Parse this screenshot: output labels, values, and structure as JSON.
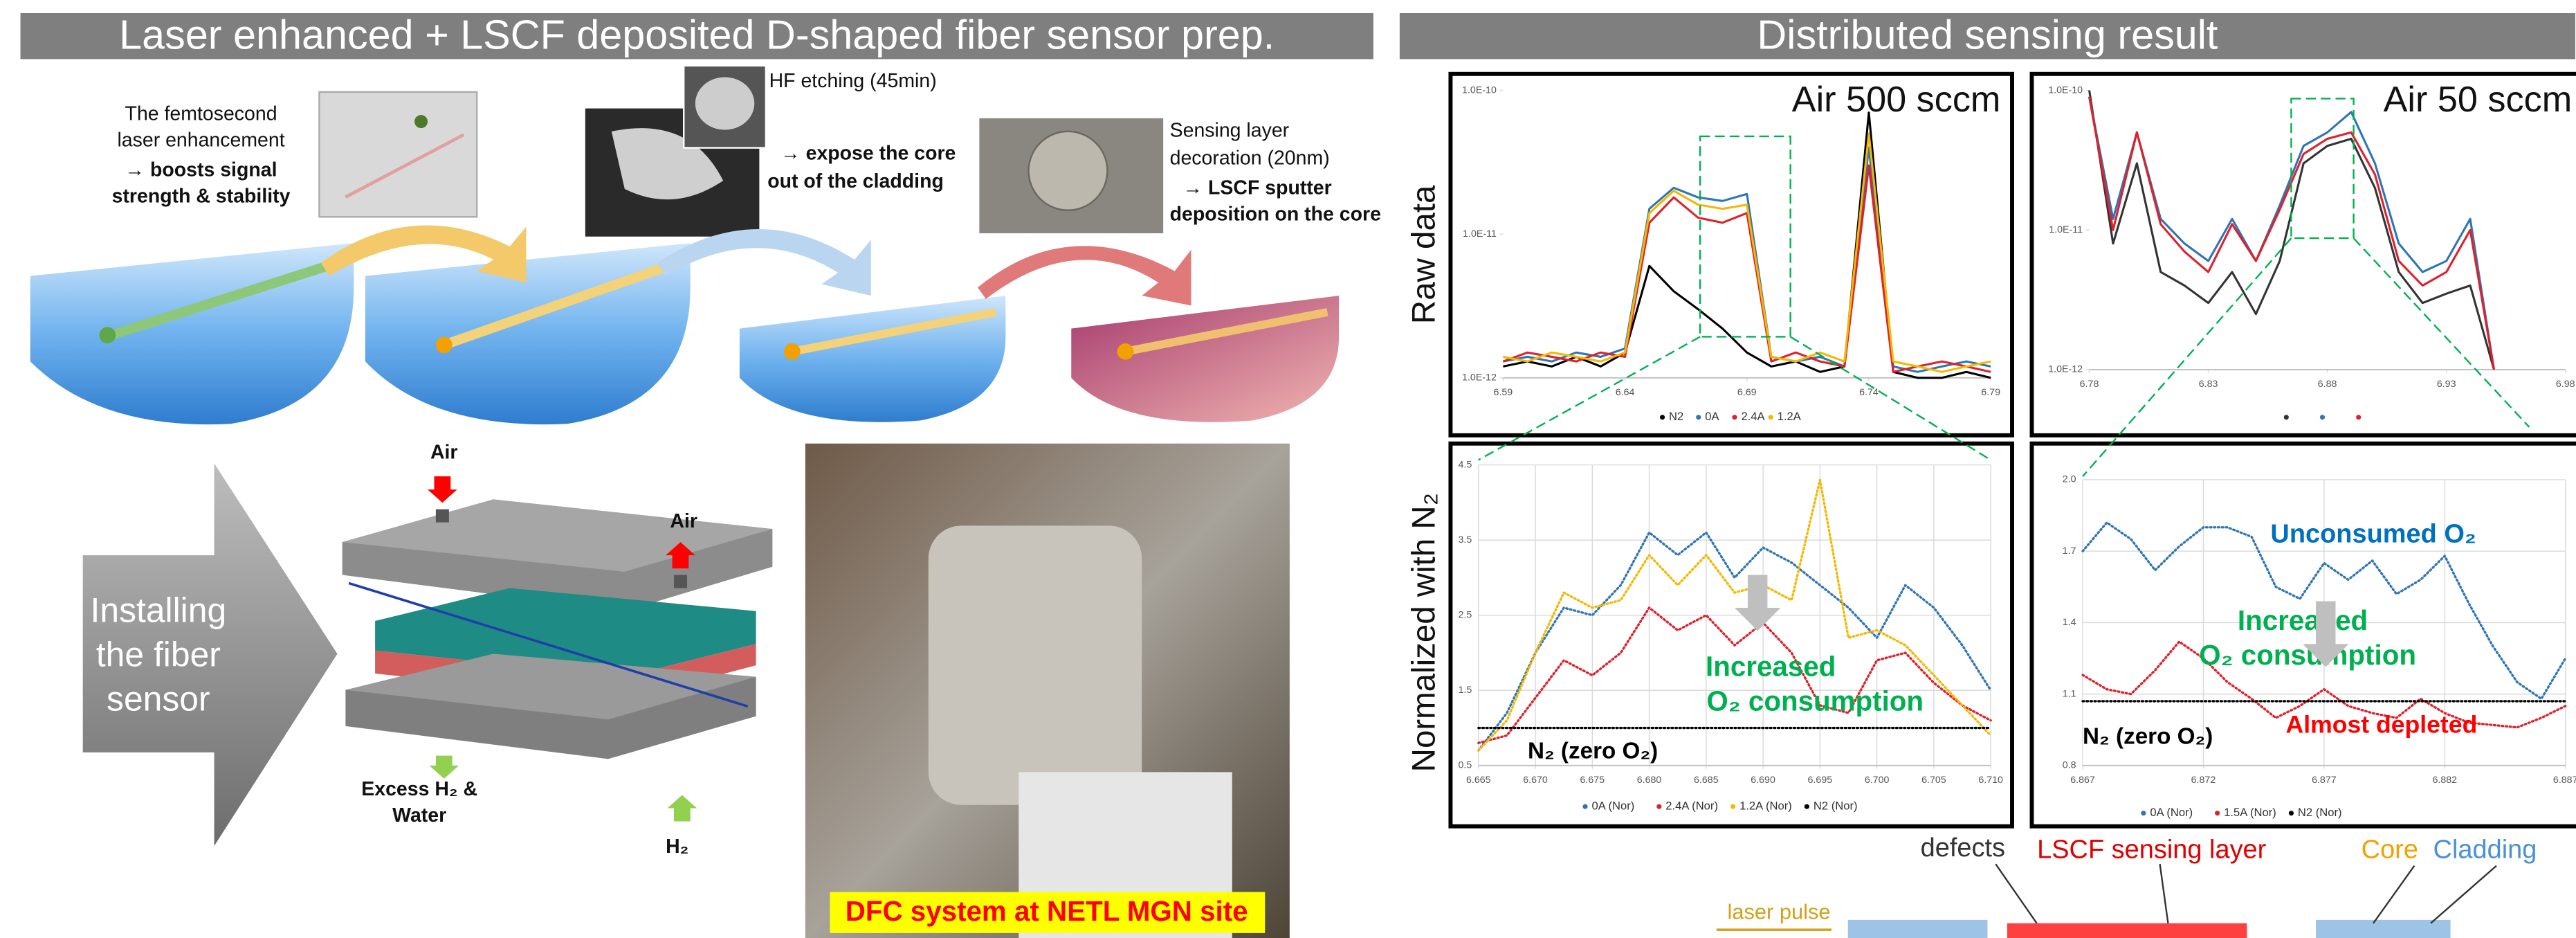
{
  "left_panel": {
    "title": "Laser enhanced + LSCF deposited D-shaped fiber sensor prep.",
    "steps": [
      {
        "description": [
          "The femtosecond",
          "laser enhancement"
        ],
        "effect": [
          "→ boosts signal",
          "strength & stability"
        ]
      },
      {
        "description": [
          "HF etching (45min)"
        ],
        "effect": [
          "→ expose the core",
          "out of the cladding"
        ]
      },
      {
        "description": [
          "Sensing layer",
          "decoration (20nm)"
        ],
        "effect": [
          "→ LSCF sputter",
          "deposition on the core"
        ]
      }
    ],
    "assembly": {
      "arrow_text": [
        "Installing",
        "the fiber",
        "sensor"
      ],
      "labels": [
        "Air",
        "Air",
        "Excess H₂ &",
        "Water",
        "H₂"
      ]
    },
    "photo_caption": "DFC system at NETL MGN site"
  },
  "right_panel": {
    "title": "Distributed sensing result",
    "row_labels": [
      "Raw data",
      "Normalized with N₂"
    ],
    "charts": [
      {
        "type": "line",
        "title": "Air 500 sccm",
        "log_y": true,
        "grid": false,
        "xlim": [
          6.59,
          6.79
        ],
        "xticks": [
          6.59,
          6.64,
          6.69,
          6.74,
          6.79
        ],
        "ylim": [
          1e-12,
          1e-10
        ],
        "yticks": [
          {
            "value": 1e-12,
            "label": "1.0E-12"
          },
          {
            "value": 1e-11,
            "label": "1.0E-11"
          },
          {
            "value": 1e-10,
            "label": "1.0E-10"
          }
        ],
        "x": [
          6.59,
          6.6,
          6.61,
          6.62,
          6.63,
          6.64,
          6.65,
          6.66,
          6.67,
          6.68,
          6.69,
          6.7,
          6.71,
          6.72,
          6.73,
          6.74,
          6.75,
          6.76,
          6.77,
          6.78,
          6.79
        ],
        "series": [
          {
            "name": "N2",
            "color": "#000000",
            "values": [
              1.2e-12,
              1.3e-12,
              1.2e-12,
              1.4e-12,
              1.2e-12,
              1.5e-12,
              6e-12,
              4e-12,
              3e-12,
              2.2e-12,
              1.5e-12,
              1.2e-12,
              1.3e-12,
              1.1e-12,
              1.2e-12,
              7e-11,
              1.1e-12,
              1e-12,
              1e-12,
              1.1e-12,
              1e-12
            ]
          },
          {
            "name": "0A",
            "color": "#2e75b6",
            "values": [
              1.3e-12,
              1.4e-12,
              1.3e-12,
              1.5e-12,
              1.4e-12,
              1.6e-12,
              1.5e-11,
              2.1e-11,
              1.8e-11,
              1.7e-11,
              1.9e-11,
              1.4e-12,
              1.3e-12,
              1.4e-12,
              1.2e-12,
              4e-11,
              1.2e-12,
              1.1e-12,
              1.2e-12,
              1.3e-12,
              1.2e-12
            ]
          },
          {
            "name": "2.4A",
            "color": "#e0202a",
            "values": [
              1.3e-12,
              1.5e-12,
              1.4e-12,
              1.3e-12,
              1.5e-12,
              1.4e-12,
              1.2e-11,
              1.8e-11,
              1.3e-11,
              1.2e-11,
              1.4e-11,
              1.3e-12,
              1.5e-12,
              1.3e-12,
              1.2e-12,
              3e-11,
              1.1e-12,
              1.2e-12,
              1.3e-12,
              1.2e-12,
              1.1e-12
            ]
          },
          {
            "name": "1.2A",
            "color": "#f5b800",
            "values": [
              1.4e-12,
              1.3e-12,
              1.5e-12,
              1.4e-12,
              1.3e-12,
              1.5e-12,
              1.4e-11,
              2e-11,
              1.6e-11,
              1.5e-11,
              1.6e-11,
              1.4e-12,
              1.3e-12,
              1.5e-12,
              1.3e-12,
              5e-11,
              1.3e-12,
              1.2e-12,
              1.1e-12,
              1.2e-12,
              1.3e-12
            ]
          }
        ],
        "annotations": []
      },
      {
        "type": "line",
        "title": "Air 50 sccm",
        "log_y": true,
        "grid": false,
        "xlim": [
          6.78,
          6.98
        ],
        "xticks": [
          6.78,
          6.83,
          6.88,
          6.93,
          6.98
        ],
        "ylim": [
          1e-12,
          1e-10
        ],
        "yticks": [
          {
            "value": 1e-12,
            "label": "1.0E-12"
          },
          {
            "value": 1e-11,
            "label": "1.0E-11"
          },
          {
            "value": 1e-10,
            "label": "1.0E-10"
          }
        ],
        "x": [
          6.78,
          6.79,
          6.8,
          6.81,
          6.82,
          6.83,
          6.84,
          6.85,
          6.86,
          6.87,
          6.88,
          6.89,
          6.9,
          6.91,
          6.92,
          6.93,
          6.94,
          6.95
        ],
        "series": [
          {
            "color": "#333333",
            "values": [
              1e-10,
              8e-12,
              3e-11,
              5e-12,
              4e-12,
              3e-12,
              5e-12,
              2.5e-12,
              6e-12,
              3e-11,
              4e-11,
              4.5e-11,
              2e-11,
              5e-12,
              3e-12,
              3.5e-12,
              4e-12,
              1e-12
            ]
          },
          {
            "color": "#2e75b6",
            "values": [
              9e-11,
              1.2e-11,
              5e-11,
              1.2e-11,
              8e-12,
              6e-12,
              1.2e-11,
              6e-12,
              1.5e-11,
              4e-11,
              5e-11,
              7e-11,
              3e-11,
              8e-12,
              5e-12,
              6e-12,
              1.2e-11,
              1e-12
            ]
          },
          {
            "color": "#e0202a",
            "values": [
              9e-11,
              1e-11,
              5e-11,
              1.1e-11,
              7e-12,
              5e-12,
              1.1e-11,
              6e-12,
              1.4e-11,
              3.5e-11,
              4.5e-11,
              5e-11,
              2.5e-11,
              6e-12,
              4e-12,
              5e-12,
              1e-11,
              1e-12
            ]
          }
        ],
        "annotations": []
      },
      {
        "type": "line",
        "grid": true,
        "xlim": [
          6.665,
          6.71
        ],
        "xticks": [
          6.665,
          {
            "value": 6.67,
            "label": "6.670"
          },
          6.675,
          {
            "value": 6.68,
            "label": "6.680"
          },
          6.685,
          {
            "value": 6.69,
            "label": "6.690"
          },
          6.695,
          {
            "value": 6.7,
            "label": "6.700"
          },
          6.705,
          {
            "value": 6.71,
            "label": "6.710"
          }
        ],
        "ylim": [
          0.5,
          4.5
        ],
        "yticks": [
          0.5,
          1.5,
          2.5,
          3.5,
          4.5
        ],
        "x": [
          6.665,
          6.6675,
          6.67,
          6.6725,
          6.675,
          6.6775,
          6.68,
          6.6825,
          6.685,
          6.6875,
          6.69,
          6.6925,
          6.695,
          6.6975,
          6.7,
          6.7025,
          6.705,
          6.7075,
          6.71
        ],
        "series": [
          {
            "name": "0A (Nor)",
            "color": "#2e75b6",
            "values": [
              0.7,
              1.2,
              2,
              2.6,
              2.5,
              2.9,
              3.6,
              3.3,
              3.6,
              3,
              3.4,
              3.2,
              2.9,
              2.6,
              2.2,
              2.9,
              2.6,
              2.1,
              1.5
            ]
          },
          {
            "name": "2.4A (Nor)",
            "color": "#e0202a",
            "values": [
              0.8,
              0.9,
              1.4,
              1.9,
              1.7,
              2,
              2.6,
              2.3,
              2.5,
              2.1,
              2.4,
              2,
              1.3,
              1.2,
              1.9,
              2,
              1.6,
              1.3,
              1.1
            ]
          },
          {
            "name": "1.2A (Nor)",
            "color": "#f5b800",
            "values": [
              0.7,
              1.1,
              2,
              2.8,
              2.6,
              2.7,
              3.3,
              2.9,
              3.3,
              2.8,
              2.9,
              2.7,
              4.3,
              2.2,
              2.3,
              2.1,
              1.7,
              1.3,
              0.9
            ]
          },
          {
            "name": "N2 (Nor)",
            "color": "#000000",
            "values": [
              1,
              1,
              1,
              1,
              1,
              1,
              1,
              1,
              1,
              1,
              1,
              1,
              1,
              1,
              1,
              1,
              1,
              1,
              1
            ]
          }
        ],
        "annotations": [
          {
            "text": "Increased",
            "color": "#00b050"
          },
          {
            "text": "O₂ consumption",
            "color": "#00b050"
          },
          {
            "text": "N₂ (zero O₂)",
            "color": "#000000"
          }
        ]
      },
      {
        "type": "line",
        "grid": true,
        "xlim": [
          6.867,
          6.887
        ],
        "xticks": [
          6.867,
          6.872,
          6.877,
          6.882,
          6.887
        ],
        "ylim": [
          0.8,
          2
        ],
        "yticks": [
          0.8,
          1.1,
          1.4,
          1.7,
          {
            "value": 2,
            "label": "2.0"
          }
        ],
        "x": [
          6.867,
          6.868,
          6.869,
          6.87,
          6.871,
          6.872,
          6.873,
          6.874,
          6.875,
          6.876,
          6.877,
          6.878,
          6.879,
          6.88,
          6.881,
          6.882,
          6.883,
          6.884,
          6.885,
          6.886,
          6.887
        ],
        "series": [
          {
            "name": "0A (Nor)",
            "color": "#2e75b6",
            "values": [
              1.7,
              1.82,
              1.75,
              1.62,
              1.72,
              1.8,
              1.8,
              1.76,
              1.55,
              1.5,
              1.65,
              1.58,
              1.66,
              1.52,
              1.58,
              1.68,
              1.48,
              1.3,
              1.15,
              1.08,
              1.25
            ]
          },
          {
            "name": "1.5A (Nor)",
            "color": "#e0202a",
            "values": [
              1.18,
              1.12,
              1.1,
              1.2,
              1.32,
              1.25,
              1.15,
              1.08,
              1,
              1.05,
              1.12,
              1.05,
              1.02,
              1,
              1.08,
              1.02,
              0.98,
              0.97,
              0.96,
              1,
              1.05
            ]
          },
          {
            "name": "N2 (Nor)",
            "color": "#000000",
            "values": [
              1.07,
              1.07,
              1.07,
              1.07,
              1.07,
              1.07,
              1.07,
              1.07,
              1.07,
              1.07,
              1.07,
              1.07,
              1.07,
              1.07,
              1.07,
              1.07,
              1.07,
              1.07,
              1.07,
              1.07,
              1.07
            ]
          }
        ],
        "annotations": [
          {
            "text": "Unconsumed O₂",
            "color": "#0070c0"
          },
          {
            "text": "Increased",
            "color": "#00b050"
          },
          {
            "text": "O₂ consumption",
            "color": "#00b050"
          },
          {
            "text": "N₂ (zero O₂)",
            "color": "#000000"
          },
          {
            "text": "Almost depleted",
            "color": "#ff0000"
          }
        ]
      }
    ]
  },
  "bottom_diagram": {
    "labels": [
      "defects",
      "LSCF sensing layer",
      "Core",
      "Cladding",
      "laser pulse"
    ]
  }
}
